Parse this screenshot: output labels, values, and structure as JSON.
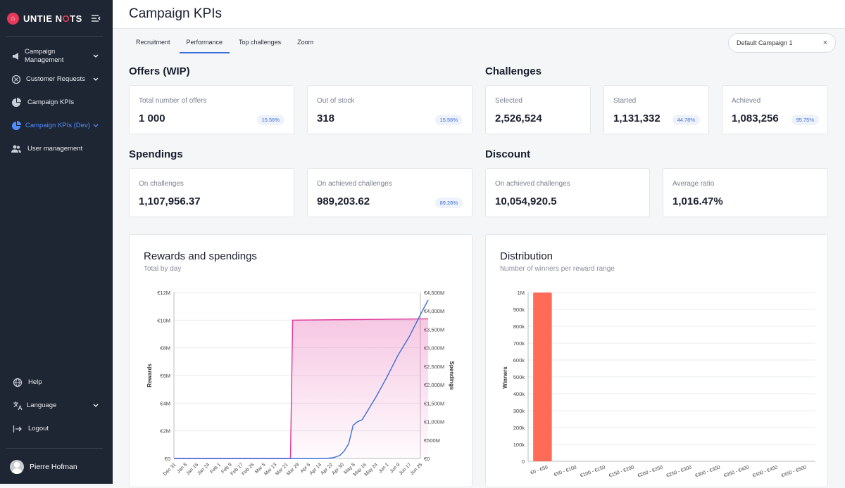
{
  "brand": {
    "name_part1": "UNTIE N",
    "name_o": "O",
    "name_part2": "TS",
    "accent": "#e8395a"
  },
  "sidebar": {
    "items": [
      {
        "label": "Campaign Management",
        "icon": "megaphone-icon"
      },
      {
        "label": "Customer Requests",
        "icon": "support-icon"
      },
      {
        "label": "Campaign KPIs",
        "icon": "pie-chart-icon"
      },
      {
        "label": "Campaign KPIs (Dev)",
        "icon": "pie-chart-icon"
      },
      {
        "label": "User management",
        "icon": "users-icon"
      }
    ],
    "bottom": [
      {
        "label": "Help",
        "icon": "globe-icon"
      },
      {
        "label": "Language",
        "icon": "translate-icon"
      },
      {
        "label": "Logout",
        "icon": "logout-icon"
      }
    ],
    "user": "Pierre Hofman"
  },
  "header": {
    "title": "Campaign KPIs"
  },
  "tabs": [
    "Recruitment",
    "Performance",
    "Top challenges",
    "Zoom"
  ],
  "campaign_select": {
    "value": "Default Campaign 1",
    "clear": "×"
  },
  "offers": {
    "title": "Offers (WIP)",
    "cards": [
      {
        "label": "Total number of offers",
        "value": "1 000",
        "badge": "15.56%"
      },
      {
        "label": "Out of stock",
        "value": "318",
        "badge": "15.56%"
      }
    ]
  },
  "challenges": {
    "title": "Challenges",
    "cards": [
      {
        "label": "Selected",
        "value": "2,526,524"
      },
      {
        "label": "Started",
        "value": "1,131,332",
        "badge": "44.78%"
      },
      {
        "label": "Achieved",
        "value": "1,083,256",
        "badge": "95.75%"
      }
    ]
  },
  "spendings": {
    "title": "Spendings",
    "cards": [
      {
        "label": "On challenges",
        "value": "1,107,956.37"
      },
      {
        "label": "On achieved challenges",
        "value": "989,203.62",
        "badge": "89.28%"
      }
    ]
  },
  "discount": {
    "title": "Discount",
    "cards": [
      {
        "label": "On achieved challenges",
        "value": "10,054,920.5"
      },
      {
        "label": "Average ratio",
        "value": "1,016.47%"
      }
    ]
  },
  "rewards_chart": {
    "title": "Rewards and spendings",
    "subtitle": "Total by day"
  },
  "distribution_chart": {
    "title": "Distribution",
    "subtitle": "Number of winners per reward range"
  },
  "chart_data": [
    {
      "type": "line",
      "title": "Rewards and spendings",
      "subtitle": "Total by day",
      "ylabel": "Rewards",
      "y2label": "Spendings",
      "x": [
        "Dec 31",
        "Jan 8",
        "Jan 16",
        "Jan 24",
        "Feb 1",
        "Feb 9",
        "Feb 17",
        "Feb 25",
        "Mar 5",
        "Mar 13",
        "Mar 21",
        "Mar 29",
        "Apr 6",
        "Apr 14",
        "Apr 22",
        "Apr 30",
        "May 8",
        "May 16",
        "May 24",
        "Jun 1",
        "Jun 9",
        "Jun 17",
        "Jun 25"
      ],
      "yticks": [
        "€0",
        "€2M",
        "€4M",
        "€6M",
        "€8M",
        "€10M",
        "€12M"
      ],
      "ylim": [
        0,
        12000000
      ],
      "y2ticks": [
        "€0",
        "€500M",
        "€1,000M",
        "€1,500M",
        "€2,000M",
        "€2,500M",
        "€3,000M",
        "€3,500M",
        "€4,000M",
        "€4,500M"
      ],
      "y2lim": [
        0,
        4500000000
      ],
      "series": [
        {
          "name": "Rewards",
          "axis": "left",
          "color": "#e0399b",
          "points": [
            [
              0,
              0
            ],
            [
              10.4,
              0
            ],
            [
              10.6,
              10000000
            ],
            [
              22.7,
              10100000
            ]
          ]
        },
        {
          "name": "Spendings",
          "axis": "right",
          "color": "#3b6fd8",
          "points": [
            [
              0,
              0
            ],
            [
              13.5,
              0
            ],
            [
              14.2,
              20000000
            ],
            [
              14.8,
              80000000
            ],
            [
              15.2,
              200000000
            ],
            [
              15.6,
              400000000
            ],
            [
              16,
              900000000
            ],
            [
              16.4,
              1000000000
            ],
            [
              16.8,
              1050000000
            ],
            [
              18,
              1650000000
            ],
            [
              19,
              2200000000
            ],
            [
              20,
              2800000000
            ],
            [
              21,
              3300000000
            ],
            [
              22,
              3900000000
            ],
            [
              22.7,
              4300000000
            ]
          ]
        }
      ]
    },
    {
      "type": "bar",
      "title": "Distribution",
      "subtitle": "Number of winners per reward range",
      "ylabel": "Winners",
      "categories": [
        "€0 - €50",
        "€50 - €100",
        "€100 - €150",
        "€150 - €200",
        "€200 - €250",
        "€250 - €300",
        "€300 - €350",
        "€350 - €400",
        "€400 - €450",
        "€450 - €500"
      ],
      "values": [
        1000000,
        0,
        0,
        0,
        0,
        0,
        0,
        0,
        0,
        0
      ],
      "yticks": [
        "0",
        "100k",
        "200k",
        "300k",
        "400k",
        "500k",
        "600k",
        "700k",
        "800k",
        "900k",
        "1M"
      ],
      "ylim": [
        0,
        1000000
      ],
      "color": "#ff6b57"
    }
  ]
}
